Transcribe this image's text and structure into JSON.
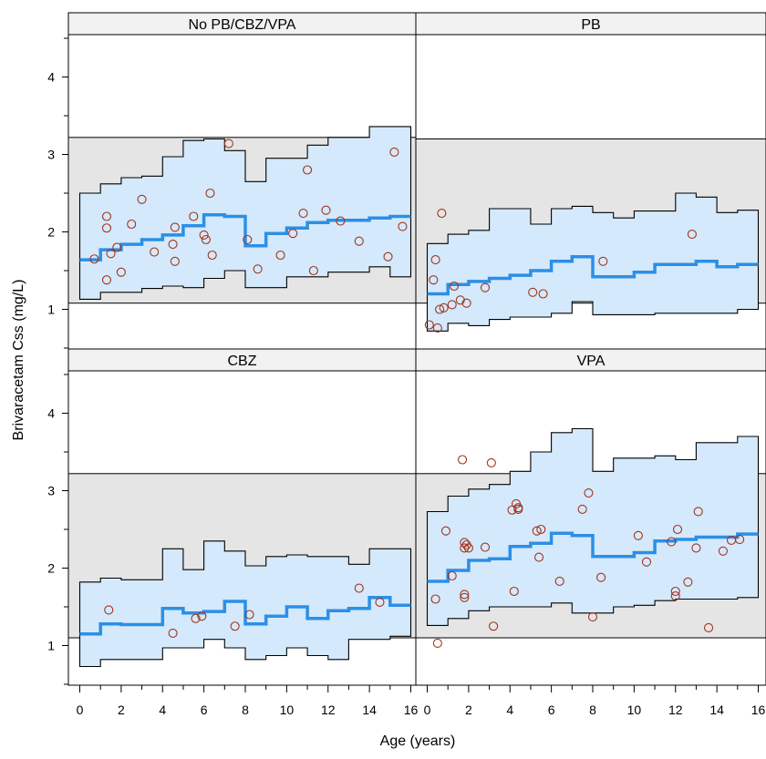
{
  "chart_data": {
    "type": "scatter",
    "xlabel": "Age (years)",
    "ylabel": "Brivaracetam Css (mg/L)",
    "xlim": [
      -1,
      16.3
    ],
    "ylim": [
      0.5,
      4.5
    ],
    "x_ticks": [
      0,
      2,
      4,
      6,
      8,
      10,
      12,
      14,
      16
    ],
    "y_ticks": [
      1,
      2,
      3,
      4
    ],
    "reference_band": [
      1.1,
      3.2
    ],
    "panels": [
      {
        "title": "No PB/CBZ/VPA",
        "band_y": [
          1.08,
          3.22
        ],
        "steps": [
          {
            "x": [
              0,
              1
            ],
            "median": 1.64,
            "lower": 1.13,
            "upper": 2.5
          },
          {
            "x": [
              1,
              2
            ],
            "median": 1.77,
            "lower": 1.22,
            "upper": 2.62
          },
          {
            "x": [
              2,
              3
            ],
            "median": 1.84,
            "lower": 1.22,
            "upper": 2.7
          },
          {
            "x": [
              3,
              4
            ],
            "median": 1.9,
            "lower": 1.27,
            "upper": 2.72
          },
          {
            "x": [
              4,
              5
            ],
            "median": 1.96,
            "lower": 1.3,
            "upper": 2.97
          },
          {
            "x": [
              5,
              6
            ],
            "median": 2.08,
            "lower": 1.28,
            "upper": 3.18
          },
          {
            "x": [
              6,
              7
            ],
            "median": 2.22,
            "lower": 1.4,
            "upper": 3.2
          },
          {
            "x": [
              7,
              8
            ],
            "median": 2.2,
            "lower": 1.5,
            "upper": 3.05
          },
          {
            "x": [
              8,
              9
            ],
            "median": 1.82,
            "lower": 1.28,
            "upper": 2.65
          },
          {
            "x": [
              9,
              10
            ],
            "median": 1.98,
            "lower": 1.28,
            "upper": 2.95
          },
          {
            "x": [
              10,
              11
            ],
            "median": 2.05,
            "lower": 1.42,
            "upper": 2.95
          },
          {
            "x": [
              11,
              12
            ],
            "median": 2.12,
            "lower": 1.42,
            "upper": 3.12
          },
          {
            "x": [
              12,
              14
            ],
            "median": 2.15,
            "lower": 1.48,
            "upper": 3.22
          },
          {
            "x": [
              14,
              15
            ],
            "median": 2.18,
            "lower": 1.55,
            "upper": 3.36
          },
          {
            "x": [
              15,
              16
            ],
            "median": 2.2,
            "lower": 1.42,
            "upper": 3.36
          }
        ],
        "points": [
          [
            0.7,
            1.65
          ],
          [
            1.3,
            2.05
          ],
          [
            1.3,
            2.2
          ],
          [
            1.3,
            1.38
          ],
          [
            1.5,
            1.72
          ],
          [
            1.8,
            1.8
          ],
          [
            2.0,
            1.48
          ],
          [
            2.5,
            2.1
          ],
          [
            3.0,
            2.42
          ],
          [
            3.6,
            1.74
          ],
          [
            4.5,
            1.84
          ],
          [
            4.6,
            2.06
          ],
          [
            4.6,
            1.62
          ],
          [
            5.5,
            2.2
          ],
          [
            6.0,
            1.96
          ],
          [
            6.1,
            1.9
          ],
          [
            6.3,
            2.5
          ],
          [
            6.4,
            1.7
          ],
          [
            7.2,
            3.14
          ],
          [
            8.1,
            1.9
          ],
          [
            8.6,
            1.52
          ],
          [
            9.7,
            1.7
          ],
          [
            10.3,
            1.98
          ],
          [
            10.8,
            2.24
          ],
          [
            11.0,
            2.8
          ],
          [
            11.3,
            1.5
          ],
          [
            11.9,
            2.28
          ],
          [
            12.6,
            2.14
          ],
          [
            13.5,
            1.88
          ],
          [
            14.9,
            1.68
          ],
          [
            15.2,
            3.03
          ],
          [
            15.6,
            2.07
          ]
        ]
      },
      {
        "title": "PB",
        "band_y": [
          1.08,
          3.2
        ],
        "steps": [
          {
            "x": [
              0,
              1
            ],
            "median": 1.2,
            "lower": 0.72,
            "upper": 1.85
          },
          {
            "x": [
              1,
              2
            ],
            "median": 1.32,
            "lower": 0.82,
            "upper": 1.97
          },
          {
            "x": [
              2,
              3
            ],
            "median": 1.36,
            "lower": 0.79,
            "upper": 2.02
          },
          {
            "x": [
              3,
              4
            ],
            "median": 1.4,
            "lower": 0.87,
            "upper": 2.3
          },
          {
            "x": [
              4,
              5
            ],
            "median": 1.44,
            "lower": 0.9,
            "upper": 2.3
          },
          {
            "x": [
              5,
              6
            ],
            "median": 1.5,
            "lower": 0.9,
            "upper": 2.1
          },
          {
            "x": [
              6,
              7
            ],
            "median": 1.62,
            "lower": 0.95,
            "upper": 2.3
          },
          {
            "x": [
              7,
              8
            ],
            "median": 1.68,
            "lower": 1.1,
            "upper": 2.33
          },
          {
            "x": [
              8,
              9
            ],
            "median": 1.42,
            "lower": 0.93,
            "upper": 2.25
          },
          {
            "x": [
              9,
              10
            ],
            "median": 1.42,
            "lower": 0.93,
            "upper": 2.18
          },
          {
            "x": [
              10,
              11
            ],
            "median": 1.48,
            "lower": 0.93,
            "upper": 2.27
          },
          {
            "x": [
              11,
              12
            ],
            "median": 1.58,
            "lower": 0.95,
            "upper": 2.27
          },
          {
            "x": [
              12,
              13
            ],
            "median": 1.58,
            "lower": 0.95,
            "upper": 2.5
          },
          {
            "x": [
              13,
              14
            ],
            "median": 1.62,
            "lower": 0.95,
            "upper": 2.45
          },
          {
            "x": [
              14,
              15
            ],
            "median": 1.55,
            "lower": 0.95,
            "upper": 2.25
          },
          {
            "x": [
              15,
              16
            ],
            "median": 1.58,
            "lower": 1.0,
            "upper": 2.28
          }
        ],
        "points": [
          [
            0.1,
            0.8
          ],
          [
            0.3,
            1.38
          ],
          [
            0.4,
            1.64
          ],
          [
            0.5,
            0.76
          ],
          [
            0.6,
            1.0
          ],
          [
            0.7,
            2.24
          ],
          [
            0.8,
            1.02
          ],
          [
            1.2,
            1.06
          ],
          [
            1.3,
            1.3
          ],
          [
            1.6,
            1.12
          ],
          [
            1.9,
            1.08
          ],
          [
            2.8,
            1.28
          ],
          [
            5.1,
            1.22
          ],
          [
            5.6,
            1.2
          ],
          [
            8.5,
            1.62
          ],
          [
            12.8,
            1.97
          ]
        ]
      },
      {
        "title": "CBZ",
        "band_y": [
          1.1,
          3.22
        ],
        "steps": [
          {
            "x": [
              0,
              1
            ],
            "median": 1.15,
            "lower": 0.73,
            "upper": 1.82
          },
          {
            "x": [
              1,
              2
            ],
            "median": 1.28,
            "lower": 0.82,
            "upper": 1.87
          },
          {
            "x": [
              2,
              4
            ],
            "median": 1.27,
            "lower": 0.82,
            "upper": 1.85
          },
          {
            "x": [
              4,
              5
            ],
            "median": 1.48,
            "lower": 0.97,
            "upper": 2.25
          },
          {
            "x": [
              5,
              6
            ],
            "median": 1.42,
            "lower": 0.97,
            "upper": 1.98
          },
          {
            "x": [
              6,
              7
            ],
            "median": 1.44,
            "lower": 1.08,
            "upper": 2.35
          },
          {
            "x": [
              7,
              8
            ],
            "median": 1.57,
            "lower": 0.97,
            "upper": 2.22
          },
          {
            "x": [
              8,
              9
            ],
            "median": 1.28,
            "lower": 0.82,
            "upper": 2.03
          },
          {
            "x": [
              9,
              10
            ],
            "median": 1.38,
            "lower": 0.87,
            "upper": 2.15
          },
          {
            "x": [
              10,
              11
            ],
            "median": 1.5,
            "lower": 0.97,
            "upper": 2.17
          },
          {
            "x": [
              11,
              12
            ],
            "median": 1.35,
            "lower": 0.87,
            "upper": 2.15
          },
          {
            "x": [
              12,
              13
            ],
            "median": 1.45,
            "lower": 0.82,
            "upper": 2.15
          },
          {
            "x": [
              13,
              14
            ],
            "median": 1.48,
            "lower": 1.08,
            "upper": 2.05
          },
          {
            "x": [
              14,
              15
            ],
            "median": 1.62,
            "lower": 1.08,
            "upper": 2.25
          },
          {
            "x": [
              15,
              16
            ],
            "median": 1.52,
            "lower": 1.12,
            "upper": 2.25
          }
        ],
        "points": [
          [
            1.4,
            1.46
          ],
          [
            4.5,
            1.16
          ],
          [
            5.6,
            1.35
          ],
          [
            5.9,
            1.38
          ],
          [
            7.5,
            1.25
          ],
          [
            8.2,
            1.4
          ],
          [
            13.5,
            1.74
          ],
          [
            14.5,
            1.56
          ]
        ]
      },
      {
        "title": "VPA",
        "band_y": [
          1.1,
          3.22
        ],
        "steps": [
          {
            "x": [
              0,
              1
            ],
            "median": 1.83,
            "lower": 1.26,
            "upper": 2.73
          },
          {
            "x": [
              1,
              2
            ],
            "median": 1.97,
            "lower": 1.35,
            "upper": 2.93
          },
          {
            "x": [
              2,
              3
            ],
            "median": 2.1,
            "lower": 1.45,
            "upper": 3.02
          },
          {
            "x": [
              3,
              4
            ],
            "median": 2.12,
            "lower": 1.5,
            "upper": 3.08
          },
          {
            "x": [
              4,
              5
            ],
            "median": 2.28,
            "lower": 1.5,
            "upper": 3.25
          },
          {
            "x": [
              5,
              6
            ],
            "median": 2.32,
            "lower": 1.5,
            "upper": 3.5
          },
          {
            "x": [
              6,
              7
            ],
            "median": 2.45,
            "lower": 1.55,
            "upper": 3.75
          },
          {
            "x": [
              7,
              8
            ],
            "median": 2.42,
            "lower": 1.42,
            "upper": 3.8
          },
          {
            "x": [
              8,
              9
            ],
            "median": 2.15,
            "lower": 1.42,
            "upper": 3.25
          },
          {
            "x": [
              9,
              10
            ],
            "median": 2.15,
            "lower": 1.5,
            "upper": 3.42
          },
          {
            "x": [
              10,
              11
            ],
            "median": 2.2,
            "lower": 1.52,
            "upper": 3.42
          },
          {
            "x": [
              11,
              12
            ],
            "median": 2.35,
            "lower": 1.58,
            "upper": 3.45
          },
          {
            "x": [
              12,
              13
            ],
            "median": 2.37,
            "lower": 1.6,
            "upper": 3.4
          },
          {
            "x": [
              13,
              15
            ],
            "median": 2.4,
            "lower": 1.6,
            "upper": 3.62
          },
          {
            "x": [
              15,
              16
            ],
            "median": 2.44,
            "lower": 1.62,
            "upper": 3.7
          }
        ],
        "points": [
          [
            0.4,
            1.6
          ],
          [
            0.5,
            1.03
          ],
          [
            0.9,
            2.48
          ],
          [
            1.2,
            1.9
          ],
          [
            1.7,
            3.4
          ],
          [
            1.8,
            2.33
          ],
          [
            1.8,
            2.26
          ],
          [
            1.8,
            1.66
          ],
          [
            1.8,
            1.62
          ],
          [
            1.9,
            2.3
          ],
          [
            2.0,
            2.26
          ],
          [
            2.8,
            2.27
          ],
          [
            3.1,
            3.36
          ],
          [
            3.2,
            1.25
          ],
          [
            4.1,
            2.75
          ],
          [
            4.2,
            1.7
          ],
          [
            4.3,
            2.83
          ],
          [
            4.4,
            2.78
          ],
          [
            4.4,
            2.76
          ],
          [
            5.3,
            2.48
          ],
          [
            5.4,
            2.14
          ],
          [
            5.5,
            2.5
          ],
          [
            6.4,
            1.83
          ],
          [
            7.5,
            2.76
          ],
          [
            7.8,
            2.97
          ],
          [
            8.0,
            1.37
          ],
          [
            8.4,
            1.88
          ],
          [
            10.2,
            2.42
          ],
          [
            10.6,
            2.08
          ],
          [
            11.8,
            2.34
          ],
          [
            12.0,
            1.64
          ],
          [
            12.0,
            1.7
          ],
          [
            12.1,
            2.5
          ],
          [
            12.6,
            1.82
          ],
          [
            13.0,
            2.26
          ],
          [
            13.1,
            2.73
          ],
          [
            13.6,
            1.23
          ],
          [
            14.3,
            2.22
          ],
          [
            14.7,
            2.36
          ],
          [
            15.1,
            2.37
          ]
        ]
      }
    ]
  }
}
